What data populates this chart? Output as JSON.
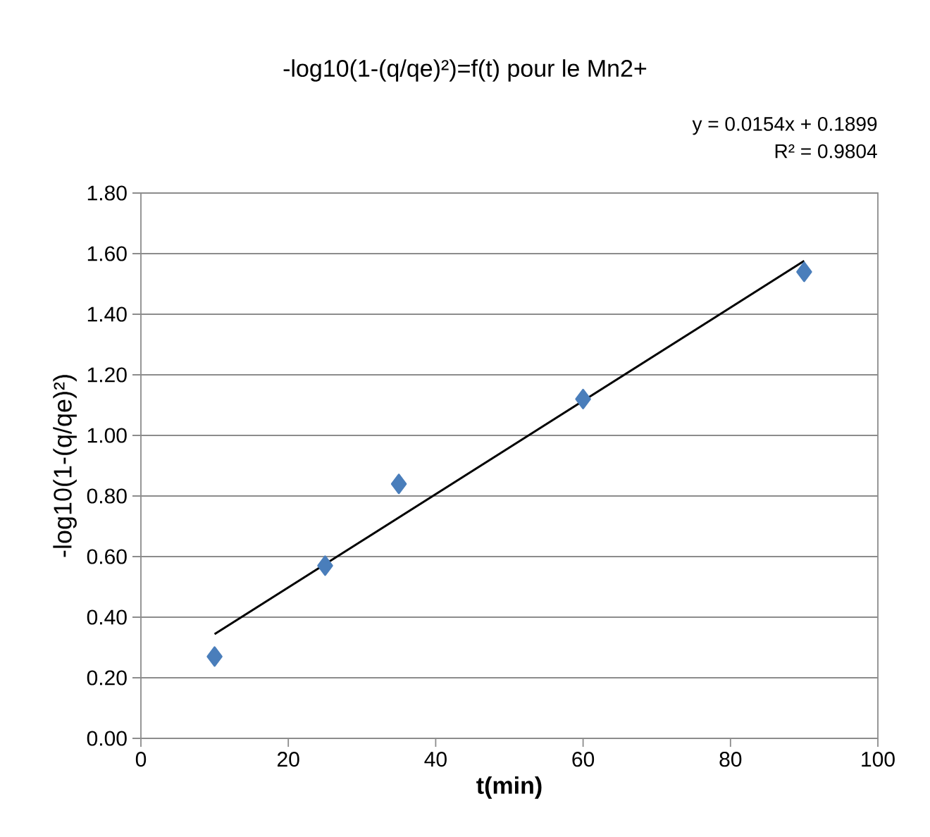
{
  "chart_data": {
    "type": "scatter",
    "title": "-log10(1-(q/qe)²)=f(t) pour le Mn2+",
    "xlabel": "**t(min)**",
    "ylabel": "-log10(1-(q/qe)²)",
    "annotations": [
      "y = 0.0154x + 0.1899",
      "R² = 0.9804"
    ],
    "series": [
      {
        "color": "#4a7ebb",
        "marker": "diamond",
        "x": [
          10,
          25,
          35,
          60,
          90
        ],
        "values": [
          0.27,
          0.57,
          0.84,
          1.12,
          1.54
        ]
      },
      {
        "type": "line",
        "color": "#000000",
        "marker": "none",
        "x": [
          10,
          90
        ],
        "values": [
          0.344,
          1.576
        ]
      }
    ],
    "xlim": [
      0,
      100
    ],
    "ylim": [
      0,
      1.8
    ],
    "xticks": [
      0,
      20,
      40,
      60,
      80,
      100
    ],
    "yticks": [
      {
        "value": 0,
        "label": "0.00"
      },
      {
        "value": 0.2,
        "label": "0.20"
      },
      {
        "value": 0.4,
        "label": "0.40"
      },
      {
        "value": 0.6,
        "label": "0.60"
      },
      {
        "value": 0.8,
        "label": "0.80"
      },
      {
        "value": 1.0,
        "label": "1.00"
      },
      {
        "value": 1.2,
        "label": "1.20"
      },
      {
        "value": 1.4,
        "label": "1.40"
      },
      {
        "value": 1.6,
        "label": "1.60"
      },
      {
        "value": 1.8,
        "label": "1.80"
      }
    ],
    "grid": "y"
  }
}
